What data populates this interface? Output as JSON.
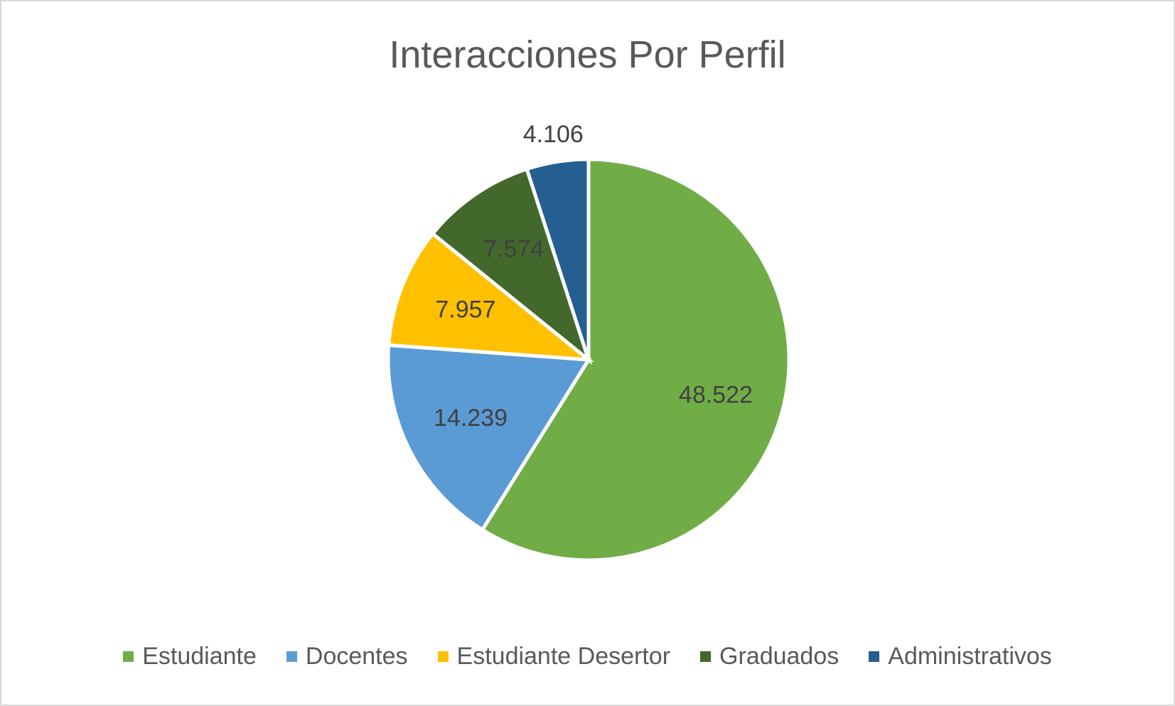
{
  "chart_data": {
    "type": "pie",
    "title": "Interacciones Por Perfil",
    "categories": [
      "Estudiante",
      "Docentes",
      "Estudiante Desertor",
      "Graduados",
      "Administrativos"
    ],
    "values": [
      48522,
      14239,
      7957,
      7574,
      4106
    ],
    "data_labels": [
      "48.522",
      "14.239",
      "7.957",
      "7.574",
      "4.106"
    ],
    "colors": [
      "#70AD47",
      "#5B9BD5",
      "#FFC000",
      "#43682B",
      "#255E91"
    ],
    "legend_position": "bottom",
    "start_angle": "12 o'clock, clockwise"
  }
}
